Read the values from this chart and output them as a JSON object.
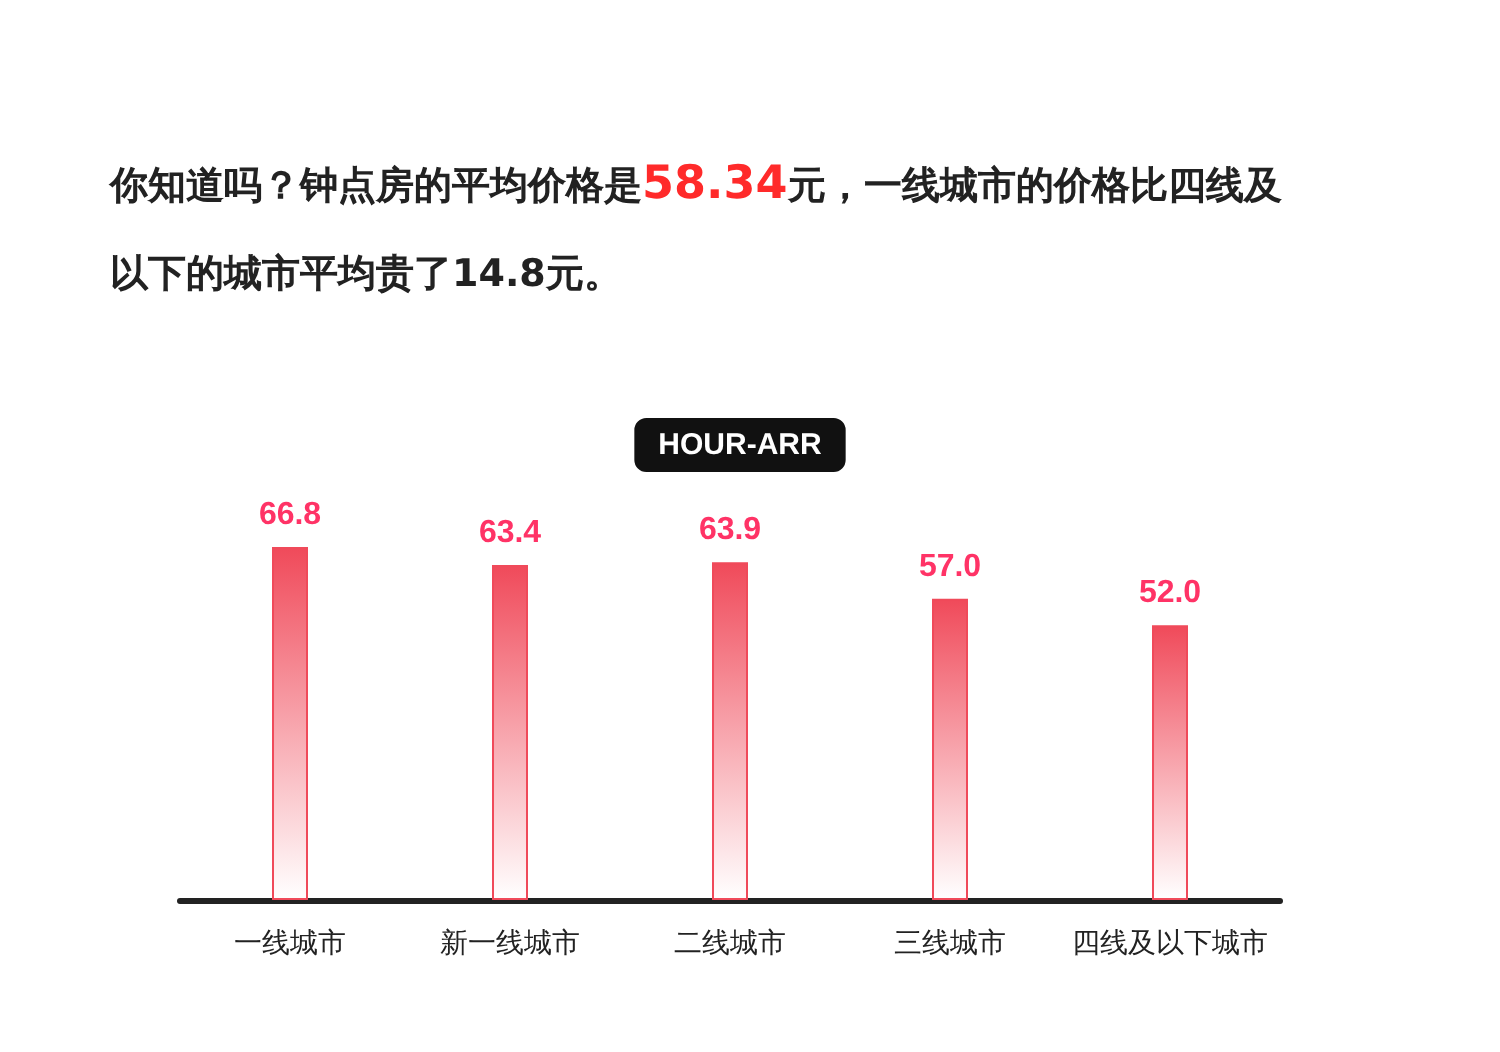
{
  "chart_data": {
    "type": "bar",
    "title": "你知道吗？钟点房的平均价格是58.34元，一线城市的价格比四线及以下的城市平均贵了14.8元。",
    "subtitle": "HOUR-ARR",
    "categories": [
      "一线城市",
      "新一线城市",
      "二线城市",
      "三线城市",
      "四线及以下城市"
    ],
    "series": [
      {
        "color": "#f04a5a",
        "values": [
          66.8,
          63.4,
          63.9,
          57.0,
          52.0
        ],
        "value_labels": [
          "66.8",
          "63.4",
          "63.9",
          "57.0",
          "52.0"
        ]
      }
    ]
  }
}
